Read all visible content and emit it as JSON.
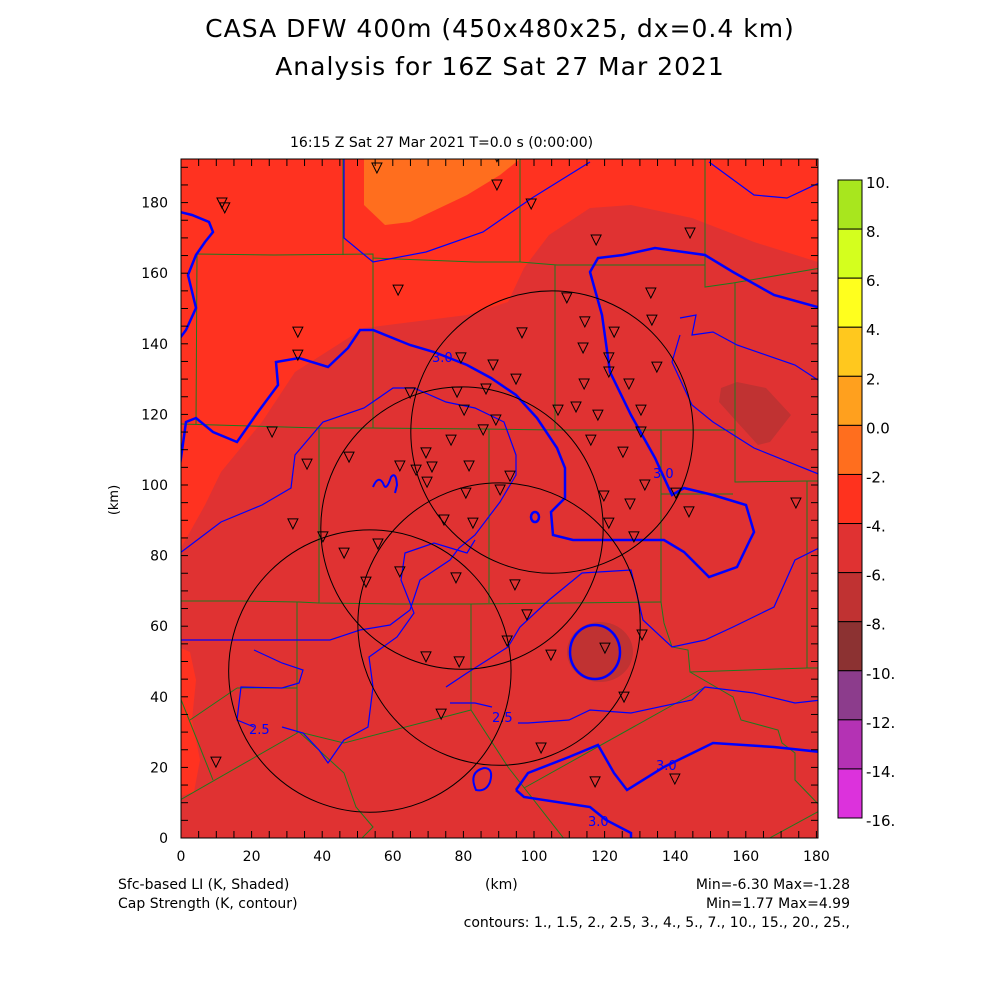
{
  "header": {
    "title_line1": "CASA DFW 400m (450x480x25, dx=0.4 km)",
    "title_line2": "Analysis for 16Z Sat 27 Mar 2021",
    "subtitle": "16:15 Z Sat 27 Mar 2021    T=0.0 s (0:00:00)"
  },
  "footer": {
    "shaded_label": "Sfc-based LI (K, Shaded)",
    "contour_label": "Cap Strength (K, contour)",
    "xlabel": "(km)",
    "shaded_minmax": "Min=-6.30 Max=-1.28",
    "contour_minmax": "Min=1.77 Max=4.99",
    "contours_list": "contours: 1., 1.5, 2., 2.5, 3., 4., 5., 7., 10., 15., 20., 25.,"
  },
  "chart_data": {
    "type": "heatmap",
    "title": "CASA DFW 400m (450x480x25, dx=0.4 km) Analysis for 16Z Sat 27 Mar 2021",
    "xlabel": "(km)",
    "ylabel": "(km)",
    "xlim": [
      0,
      180
    ],
    "ylim": [
      0,
      192
    ],
    "xticks": [
      "0",
      "20",
      "40",
      "60",
      "80",
      "100",
      "120",
      "140",
      "160",
      "180"
    ],
    "yticks": [
      "0",
      "20",
      "40",
      "60",
      "80",
      "100",
      "120",
      "140",
      "160",
      "180"
    ],
    "colorbar": {
      "labels": [
        "10.",
        "8.",
        "6.",
        "4.",
        "2.",
        "0.0",
        "-2.",
        "-4.",
        "-6.",
        "-8.",
        "-10.",
        "-12.",
        "-14.",
        "-16."
      ],
      "colors": [
        "#a8e61e",
        "#d4ff1e",
        "#ffff1e",
        "#ffc81e",
        "#ffa01e",
        "#ff6e1e",
        "#ff321e",
        "#e03232",
        "#c03232",
        "#8c3232",
        "#8c3c8c",
        "#b432b4",
        "#dc32dc"
      ]
    },
    "shaded_field": {
      "name": "Sfc-based LI",
      "units": "K",
      "min": -6.3,
      "max": -1.28
    },
    "contour_field": {
      "name": "Cap Strength",
      "units": "K",
      "min": 1.77,
      "max": 4.99,
      "levels": [
        1,
        1.5,
        2,
        2.5,
        3,
        4,
        5,
        7,
        10,
        15,
        20,
        25
      ]
    },
    "contour_labels": [
      "3.0",
      "3.0",
      "2.5",
      "2.5",
      "3.0",
      "3.0"
    ],
    "radar_range_rings_km": [
      {
        "x": 105.1,
        "y": 115.0,
        "r": 40
      },
      {
        "x": 79.6,
        "y": 87.8,
        "r": 40
      },
      {
        "x": 90.1,
        "y": 60.6,
        "r": 40
      },
      {
        "x": 53.5,
        "y": 47.3,
        "r": 40
      }
    ],
    "stations_km": [
      [
        11.6,
        179.9
      ],
      [
        12.4,
        178.5
      ],
      [
        55.5,
        189.8
      ],
      [
        89.5,
        193
      ],
      [
        89.5,
        185
      ],
      [
        99.2,
        179.6
      ],
      [
        117.6,
        169.4
      ],
      [
        144.2,
        171.4
      ],
      [
        61.5,
        155.2
      ],
      [
        33.1,
        143.3
      ],
      [
        33.1,
        136.8
      ],
      [
        25.8,
        115
      ],
      [
        35.7,
        105.9
      ],
      [
        47.6,
        107.9
      ],
      [
        133.1,
        154.4
      ],
      [
        133.4,
        146.7
      ],
      [
        109.3,
        153
      ],
      [
        114.4,
        146.2
      ],
      [
        122.7,
        143.3
      ],
      [
        96.6,
        143.1
      ],
      [
        79.3,
        136
      ],
      [
        88.4,
        134
      ],
      [
        113.9,
        138.8
      ],
      [
        121.2,
        136
      ],
      [
        121.2,
        132
      ],
      [
        126.9,
        128.6
      ],
      [
        134.8,
        133.4
      ],
      [
        114.2,
        128.6
      ],
      [
        94.9,
        130
      ],
      [
        86.4,
        127.2
      ],
      [
        78.2,
        126.3
      ],
      [
        64.9,
        126.1
      ],
      [
        80.2,
        121.2
      ],
      [
        85.6,
        115.6
      ],
      [
        89.2,
        118.4
      ],
      [
        106.8,
        121.2
      ],
      [
        111.9,
        122.1
      ],
      [
        118.1,
        119.8
      ],
      [
        130.3,
        121.2
      ],
      [
        130.3,
        115
      ],
      [
        116.1,
        112.7
      ],
      [
        125.2,
        109.3
      ],
      [
        76.5,
        112.7
      ],
      [
        69.4,
        109.1
      ],
      [
        81.6,
        105.4
      ],
      [
        62,
        105.4
      ],
      [
        66.6,
        104.2
      ],
      [
        71.1,
        105.1
      ],
      [
        69.7,
        100.8
      ],
      [
        93.2,
        102.5
      ],
      [
        80.7,
        97.7
      ],
      [
        90.4,
        98.6
      ],
      [
        74.5,
        90.1
      ],
      [
        82.7,
        89.2
      ],
      [
        119.8,
        96.9
      ],
      [
        127.2,
        94.6
      ],
      [
        131.4,
        100
      ],
      [
        140.2,
        97.7
      ],
      [
        143.9,
        92.4
      ],
      [
        128.3,
        85.3
      ],
      [
        121.2,
        89.2
      ],
      [
        174.2,
        94.9
      ],
      [
        31.7,
        89
      ],
      [
        40.2,
        85.3
      ],
      [
        46.2,
        80.7
      ],
      [
        55.8,
        83.3
      ],
      [
        62,
        75.4
      ],
      [
        52.4,
        72.5
      ],
      [
        77.9,
        73.7
      ],
      [
        94.6,
        71.7
      ],
      [
        98,
        63.2
      ],
      [
        92.4,
        55.8
      ],
      [
        104.8,
        51.8
      ],
      [
        120.1,
        53.8
      ],
      [
        125.5,
        39.9
      ],
      [
        130.6,
        57.5
      ],
      [
        69.4,
        51.3
      ],
      [
        78.8,
        49.9
      ],
      [
        73.7,
        35.1
      ],
      [
        102,
        25.5
      ],
      [
        9.9,
        21.5
      ],
      [
        117.3,
        15.9
      ],
      [
        139.9,
        16.7
      ]
    ]
  }
}
